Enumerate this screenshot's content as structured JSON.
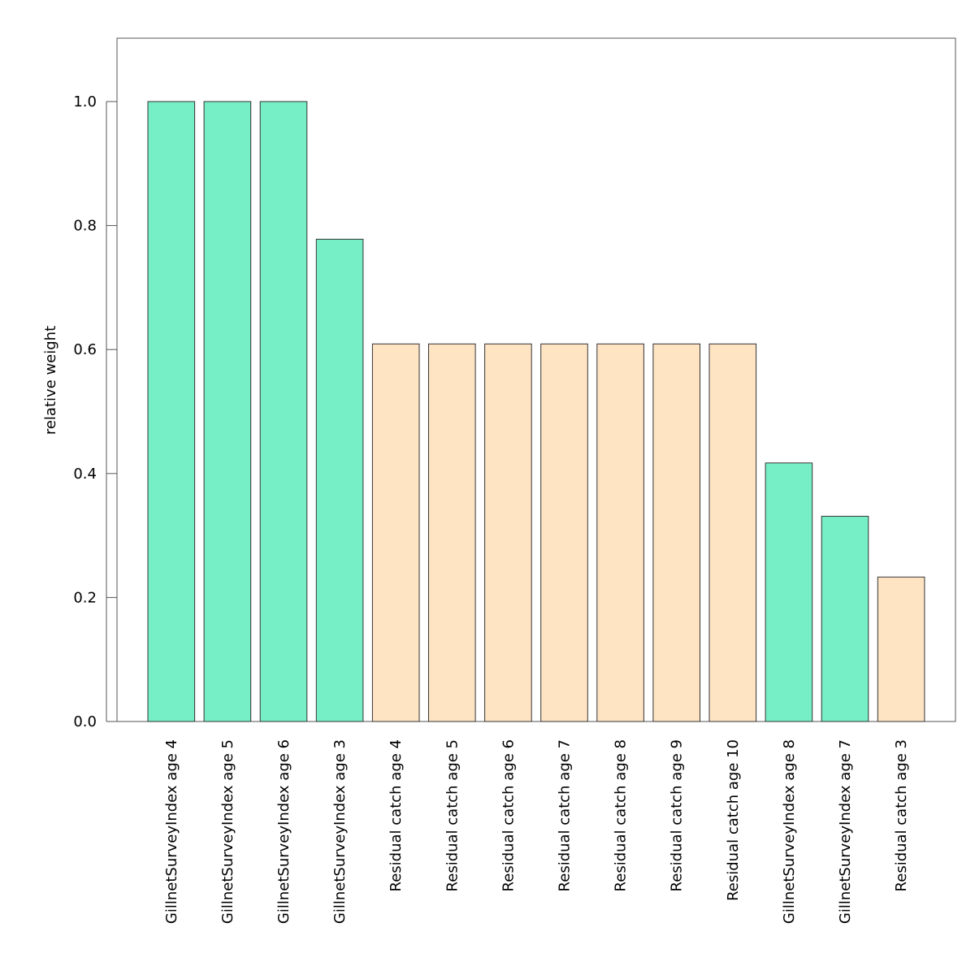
{
  "chart_data": {
    "type": "bar",
    "title": "",
    "xlabel": "",
    "ylabel": "relative weight",
    "ylim": [
      0,
      1.1
    ],
    "yticks": [
      0.0,
      0.2,
      0.4,
      0.6,
      0.8,
      1.0
    ],
    "ytick_labels": [
      "0.0",
      "0.2",
      "0.4",
      "0.6",
      "0.8",
      "1.0"
    ],
    "categories": [
      "GillnetSurveyIndex age 4",
      "GillnetSurveyIndex age 5",
      "GillnetSurveyIndex age 6",
      "GillnetSurveyIndex age 3",
      "Residual catch age 4",
      "Residual catch age 5",
      "Residual catch age 6",
      "Residual catch age 7",
      "Residual catch age 8",
      "Residual catch age 9",
      "Residual catch age 10",
      "GillnetSurveyIndex age 8",
      "GillnetSurveyIndex age 7",
      "Residual catch age 3"
    ],
    "values": [
      1.0,
      1.0,
      1.0,
      0.778,
      0.609,
      0.609,
      0.609,
      0.609,
      0.609,
      0.609,
      0.609,
      0.417,
      0.331,
      0.233
    ],
    "groups": [
      "survey",
      "survey",
      "survey",
      "survey",
      "catch",
      "catch",
      "catch",
      "catch",
      "catch",
      "catch",
      "catch",
      "survey",
      "survey",
      "catch"
    ],
    "colors": {
      "survey": "#76eec6",
      "catch": "#ffe4c4",
      "bar_border": "#333333",
      "axis": "#555555"
    },
    "grid": false,
    "legend": "none"
  }
}
